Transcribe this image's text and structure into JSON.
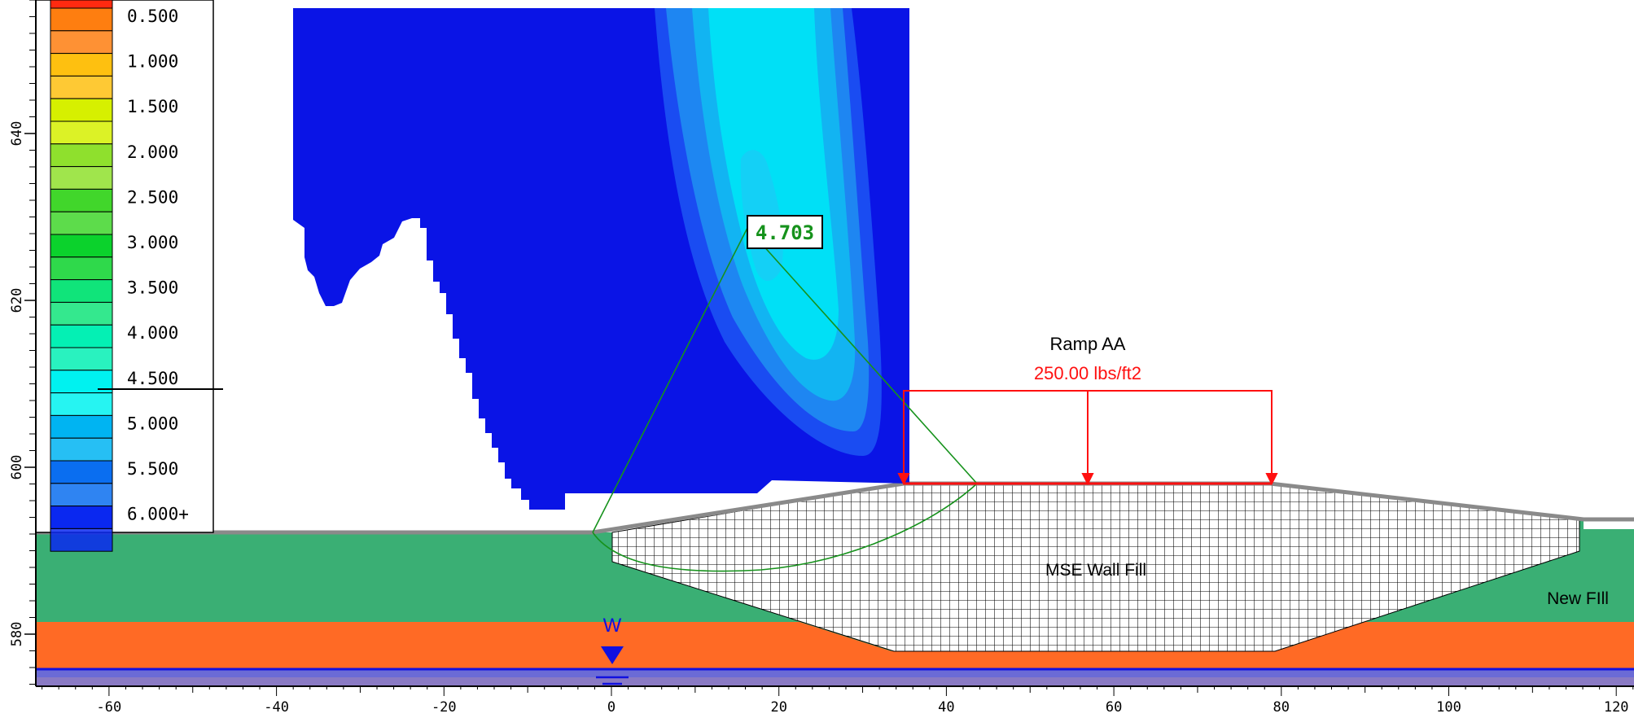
{
  "legend": {
    "entries": [
      {
        "label": "0.500",
        "color": "#fe7e10"
      },
      {
        "label": "1.000",
        "color": "#fec010"
      },
      {
        "label": "1.500",
        "color": "#d6f000"
      },
      {
        "label": "2.000",
        "color": "#8fe02d"
      },
      {
        "label": "2.500",
        "color": "#41d62b"
      },
      {
        "label": "3.000",
        "color": "#0bd22c"
      },
      {
        "label": "3.500",
        "color": "#10e47a"
      },
      {
        "label": "4.000",
        "color": "#04f0b4"
      },
      {
        "label": "4.500",
        "color": "#00f2f0"
      },
      {
        "label": "5.000",
        "color": "#00b4f2"
      },
      {
        "label": "5.500",
        "color": "#0a6ef0"
      },
      {
        "label": "6.000+",
        "color": "#0a28f0"
      }
    ]
  },
  "y_axis": {
    "ticks": [
      "640",
      "620",
      "600",
      "580"
    ]
  },
  "x_axis": {
    "ticks": [
      "-60",
      "-40",
      "-20",
      "0",
      "20",
      "40",
      "60",
      "80",
      "100",
      "120"
    ]
  },
  "annotations": {
    "fos_label": "4.703",
    "load_title": "Ramp AA",
    "load_value": "250.00 lbs/ft2",
    "mse_label": "MSE Wall Fill",
    "new_fill_label": "New FIll",
    "water_label": "W"
  },
  "colors": {
    "grid_blue": "#0a14e6",
    "contour_1": "#1a4cf2",
    "contour_2": "#1e86f2",
    "contour_3": "#12b4f2",
    "contour_4": "#00e0f6",
    "ground_green": "#3aaf74",
    "soil_orange": "#ff6a25",
    "load_red": "#ff1010",
    "slip_green": "#16921c",
    "water_blue": "#1010e0"
  }
}
